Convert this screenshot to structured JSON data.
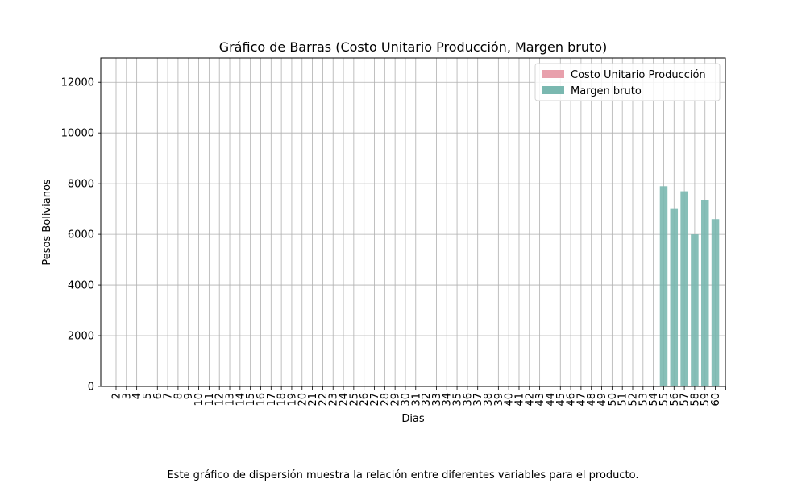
{
  "caption": "Este gráfico de dispersión muestra la relación entre diferentes variables para el producto.",
  "chart_data": {
    "type": "bar",
    "title": "Gráfico de Barras (Costo Unitario Producción, Margen bruto)",
    "xlabel": "Dias",
    "ylabel": "Pesos Bolivianos",
    "ylim": [
      0,
      12960
    ],
    "yticks": [
      0,
      2000,
      4000,
      6000,
      8000,
      10000,
      12000
    ],
    "grid": true,
    "legend_position": "top-right",
    "categories": [
      "2",
      "3",
      "4",
      "5",
      "6",
      "7",
      "8",
      "9",
      "10",
      "11",
      "12",
      "13",
      "14",
      "15",
      "16",
      "17",
      "18",
      "19",
      "20",
      "21",
      "22",
      "23",
      "24",
      "25",
      "26",
      "27",
      "28",
      "29",
      "30",
      "31",
      "32",
      "33",
      "34",
      "35",
      "36",
      "37",
      "38",
      "39",
      "40",
      "41",
      "42",
      "43",
      "44",
      "45",
      "46",
      "47",
      "48",
      "49",
      "50",
      "51",
      "52",
      "53",
      "54",
      "55",
      "56",
      "57",
      "58",
      "59",
      "60"
    ],
    "series": [
      {
        "name": "Costo Unitario Producción",
        "color": "#e8a0ac",
        "values": [
          0,
          0,
          0,
          0,
          0,
          0,
          0,
          0,
          0,
          0,
          0,
          0,
          0,
          0,
          0,
          0,
          0,
          0,
          0,
          0,
          0,
          0,
          0,
          0,
          0,
          0,
          0,
          0,
          0,
          0,
          0,
          0,
          0,
          0,
          0,
          0,
          0,
          0,
          0,
          0,
          0,
          0,
          0,
          0,
          0,
          0,
          0,
          0,
          0,
          0,
          0,
          0,
          0,
          0,
          0,
          0,
          0,
          0,
          0
        ]
      },
      {
        "name": "Margen bruto",
        "color": "#7ab8b0",
        "values": [
          0,
          0,
          0,
          0,
          0,
          0,
          0,
          0,
          0,
          0,
          0,
          0,
          0,
          0,
          0,
          0,
          0,
          0,
          0,
          0,
          0,
          0,
          0,
          0,
          0,
          0,
          0,
          0,
          0,
          0,
          0,
          0,
          0,
          0,
          0,
          0,
          0,
          0,
          0,
          0,
          0,
          0,
          0,
          0,
          0,
          0,
          0,
          0,
          0,
          0,
          0,
          0,
          0,
          7900,
          7000,
          7700,
          6000,
          7350,
          6600
        ]
      }
    ]
  }
}
